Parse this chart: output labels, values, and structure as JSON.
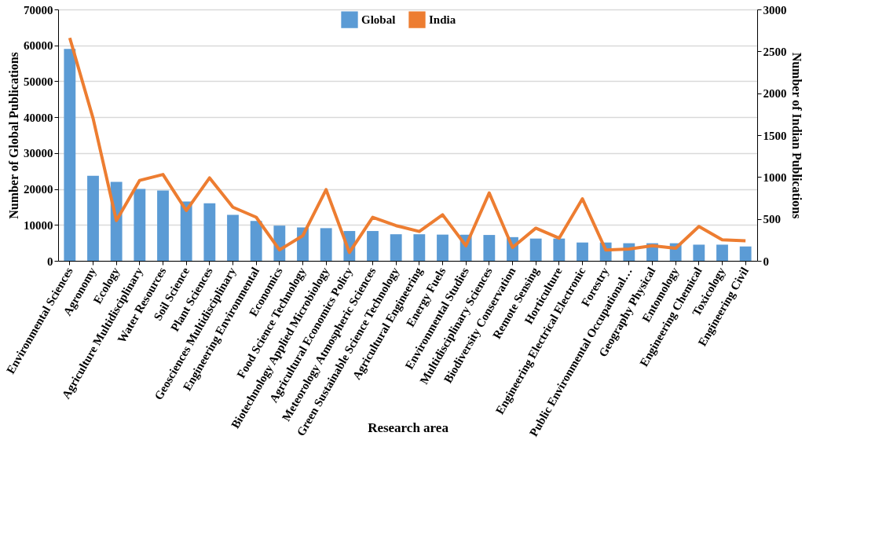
{
  "chart_data": {
    "type": "bar",
    "xlabel": "Research area",
    "ylabel": "Number of Global Publications",
    "y2label": "Number of Indian Publications",
    "categories": [
      "Environmental Sciences",
      "Agronomy",
      "Ecology",
      "Agriculture Multidisciplinary",
      "Water Resources",
      "Soil Science",
      "Plant Sciences",
      "Geosciences Multidisciplinary",
      "Engineering Environmental",
      "Economics",
      "Food Science Technology",
      "Biotechnology Applied Microbiology",
      "Agricultural Economics Policy",
      "Meteorology Atmospheric Sciences",
      "Green Sustainable Science Technology",
      "Agricultural Engineering",
      "Energy Fuels",
      "Environmental Studies",
      "Multidisciplinary Sciences",
      "Biodiversity Conservation",
      "Remote Sensing",
      "Horticulture",
      "Engineering Electrical Electronic",
      "Forestry",
      "Public Environmental Occupational…",
      "Geography Physical",
      "Entomology",
      "Engineering Chemical",
      "Toxicology",
      "Engineering Civil"
    ],
    "series": [
      {
        "name": "Global",
        "color": "#5b9bd5",
        "values": [
          59000,
          23700,
          22000,
          20000,
          19600,
          16500,
          16000,
          12800,
          11100,
          9800,
          9300,
          9100,
          8300,
          8300,
          7400,
          7400,
          7300,
          7300,
          7200,
          6600,
          6200,
          6200,
          5100,
          5100,
          4900,
          4900,
          4900,
          4500,
          4500,
          4000
        ]
      },
      {
        "name": "India",
        "type": "line",
        "axis": "y2",
        "color": "#ed7d31",
        "values": [
          2660,
          1700,
          480,
          960,
          1030,
          600,
          990,
          640,
          520,
          130,
          300,
          850,
          100,
          520,
          420,
          350,
          550,
          180,
          810,
          160,
          390,
          270,
          740,
          130,
          140,
          180,
          150,
          410,
          250,
          240
        ]
      }
    ],
    "ylim": [
      0,
      70000
    ],
    "yticks": [
      0,
      10000,
      20000,
      30000,
      40000,
      50000,
      60000,
      70000
    ],
    "y2lim": [
      0,
      3000
    ],
    "y2ticks": [
      0,
      500,
      1000,
      1500,
      2000,
      2500,
      3000
    ],
    "grid": "y",
    "legend": "top",
    "marker": "none",
    "line_style": "solid"
  }
}
